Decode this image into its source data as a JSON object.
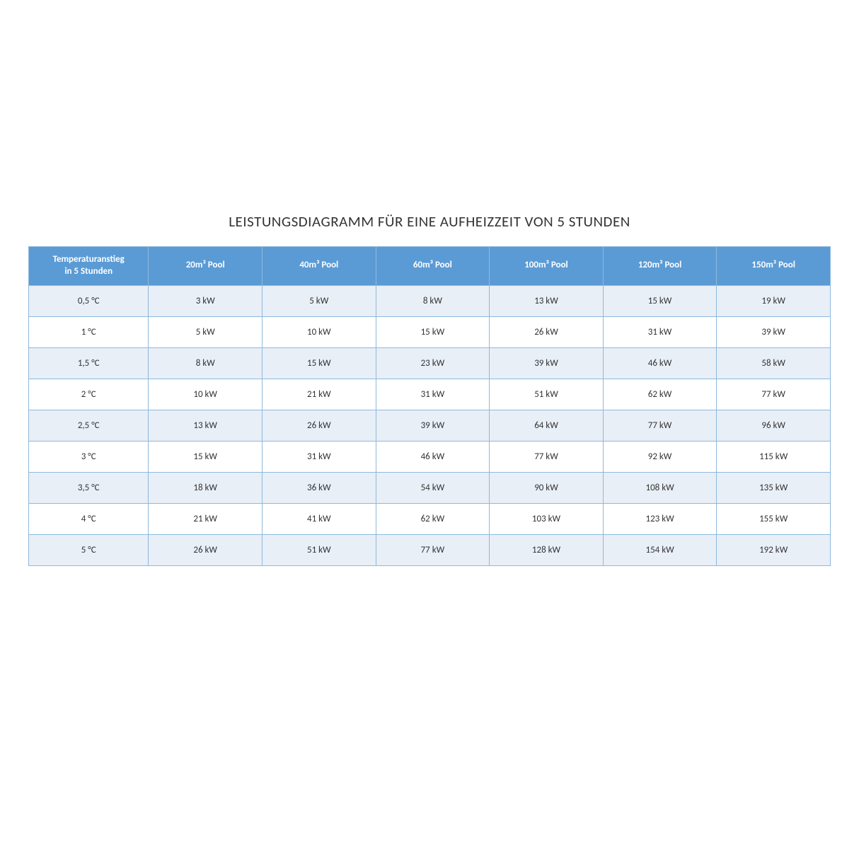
{
  "table": {
    "type": "table",
    "title": "LEISTUNGSDIAGRAMM FÜR EINE AUFHEIZZEIT VON 5 STUNDEN",
    "header_bg": "#5b9bd5",
    "header_text_color": "#ffffff",
    "row_odd_bg": "#e9eff7",
    "row_even_bg": "#ffffff",
    "border_color": "#8eb9dc",
    "title_fontsize": 21,
    "header_fontsize": 13,
    "cell_fontsize": 13,
    "columns": [
      "Temperaturanstieg\nin 5 Stunden",
      "20m³ Pool",
      "40m³ Pool",
      "60m³ Pool",
      "100m³ Pool",
      "120m³ Pool",
      "150m³ Pool"
    ],
    "rows": [
      [
        "0,5 °C",
        "3 kW",
        "5 kW",
        "8 kW",
        "13 kW",
        "15 kW",
        "19 kW"
      ],
      [
        "1 °C",
        "5 kW",
        "10 kW",
        "15 kW",
        "26 kW",
        "31 kW",
        "39 kW"
      ],
      [
        "1,5 °C",
        "8 kW",
        "15 kW",
        "23 kW",
        "39 kW",
        "46 kW",
        "58 kW"
      ],
      [
        "2 °C",
        "10 kW",
        "21 kW",
        "31 kW",
        "51 kW",
        "62 kW",
        "77 kW"
      ],
      [
        "2,5 °C",
        "13 kW",
        "26 kW",
        "39 kW",
        "64 kW",
        "77 kW",
        "96 kW"
      ],
      [
        "3 °C",
        "15 kW",
        "31 kW",
        "46 kW",
        "77 kW",
        "92 kW",
        "115 kW"
      ],
      [
        "3,5 °C",
        "18 kW",
        "36 kW",
        "54 kW",
        "90 kW",
        "108 kW",
        "135 kW"
      ],
      [
        "4 °C",
        "21 kW",
        "41 kW",
        "62 kW",
        "103 kW",
        "123 kW",
        "155 kW"
      ],
      [
        "5 °C",
        "26 kW",
        "51 kW",
        "77 kW",
        "128 kW",
        "154 kW",
        "192 kW"
      ]
    ]
  }
}
